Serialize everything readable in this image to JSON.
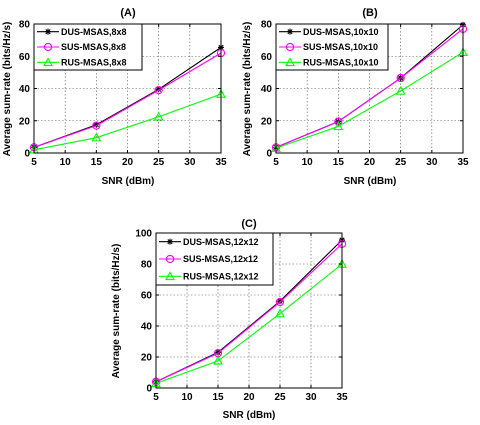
{
  "chart_data": [
    {
      "type": "line",
      "title": "(A)",
      "xlabel": "SNR (dBm)",
      "ylabel": "Average sum-rate (bits/Hz/s)",
      "xlim": [
        5,
        35
      ],
      "ylim": [
        0,
        80
      ],
      "xticks": [
        5,
        10,
        15,
        20,
        25,
        30,
        35
      ],
      "yticks": [
        0,
        20,
        40,
        60,
        80
      ],
      "x": [
        5,
        15,
        25,
        35
      ],
      "grid": true,
      "legend": "top-left",
      "series": [
        {
          "name": "DUS-MSAS,8x8",
          "values": [
            3.5,
            17.5,
            39.5,
            65.5
          ],
          "color": "#000000",
          "marker": "star"
        },
        {
          "name": "SUS-MSAS,8x8",
          "values": [
            3.5,
            17.0,
            39.0,
            62.0
          ],
          "color": "#ff00ff",
          "marker": "circle"
        },
        {
          "name": "RUS-MSAS,8x8",
          "values": [
            2.0,
            9.5,
            22.5,
            36.5
          ],
          "color": "#00ff00",
          "marker": "triangle"
        }
      ]
    },
    {
      "type": "line",
      "title": "(B)",
      "xlabel": "SNR (dBm)",
      "ylabel": "Average sum-rate (bits/Hz/s)",
      "xlim": [
        5,
        35
      ],
      "ylim": [
        0,
        80
      ],
      "xticks": [
        5,
        10,
        15,
        20,
        25,
        30,
        35
      ],
      "yticks": [
        0,
        20,
        40,
        60,
        80
      ],
      "x": [
        5,
        15,
        25,
        35
      ],
      "grid": true,
      "legend": "top-left",
      "series": [
        {
          "name": "DUS-MSAS,10x10",
          "values": [
            3.5,
            19.5,
            46.5,
            79.5
          ],
          "color": "#000000",
          "marker": "star"
        },
        {
          "name": "SUS-MSAS,10x10",
          "values": [
            3.5,
            19.5,
            46.5,
            77.0
          ],
          "color": "#ff00ff",
          "marker": "circle"
        },
        {
          "name": "RUS-MSAS,10x10",
          "values": [
            3.0,
            16.5,
            38.5,
            62.5
          ],
          "color": "#00ff00",
          "marker": "triangle"
        }
      ]
    },
    {
      "type": "line",
      "title": "(C)",
      "xlabel": "SNR (dBm)",
      "ylabel": "Average sum-rate (bits/Hz/s)",
      "xlim": [
        5,
        35
      ],
      "ylim": [
        0,
        100
      ],
      "xticks": [
        5,
        10,
        15,
        20,
        25,
        30,
        35
      ],
      "yticks": [
        0,
        20,
        40,
        60,
        80,
        100
      ],
      "x": [
        5,
        15,
        25,
        35
      ],
      "grid": true,
      "legend": "top-left",
      "series": [
        {
          "name": "DUS-MSAS,12x12",
          "values": [
            4.0,
            23.0,
            56.0,
            95.5
          ],
          "color": "#000000",
          "marker": "star"
        },
        {
          "name": "SUS-MSAS,12x12",
          "values": [
            4.0,
            22.5,
            55.5,
            93.0
          ],
          "color": "#ff00ff",
          "marker": "circle"
        },
        {
          "name": "RUS-MSAS,12x12",
          "values": [
            3.0,
            17.5,
            48.0,
            80.0
          ],
          "color": "#00ff00",
          "marker": "triangle"
        }
      ]
    }
  ]
}
